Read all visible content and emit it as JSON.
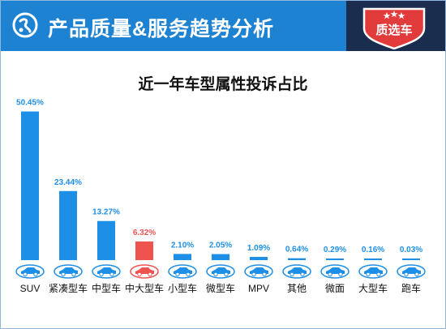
{
  "header": {
    "title": "产品质量&服务趋势分析",
    "badge_text": "质选车",
    "colors": {
      "header_blue": "#1e82d2",
      "header_dark": "#1b2d4e",
      "badge_red": "#e23b3b"
    }
  },
  "icons": [
    "logo-icon",
    "star-icon",
    "car-icon"
  ],
  "chart_data": {
    "type": "bar",
    "title": "近一年车型属性投诉占比",
    "xlabel": "",
    "ylabel": "",
    "ylim": [
      0,
      55
    ],
    "categories": [
      "SUV",
      "紧凑型车",
      "中型车",
      "中大型车",
      "小型车",
      "微型车",
      "MPV",
      "其他",
      "微面",
      "大型车",
      "跑车"
    ],
    "values": [
      50.45,
      23.44,
      13.27,
      6.32,
      2.1,
      2.05,
      1.09,
      0.64,
      0.29,
      0.16,
      0.03
    ],
    "value_labels": [
      "50.45%",
      "23.44%",
      "13.27%",
      "6.32%",
      "2.10%",
      "2.05%",
      "1.09%",
      "0.64%",
      "0.29%",
      "0.16%",
      "0.03%"
    ],
    "highlight_index": 3,
    "colors": {
      "bar": "#1e8fe6",
      "highlight": "#ef5350",
      "label": "#1e8fe6",
      "highlight_label": "#ef5350"
    },
    "grid": false,
    "legend": "none"
  }
}
